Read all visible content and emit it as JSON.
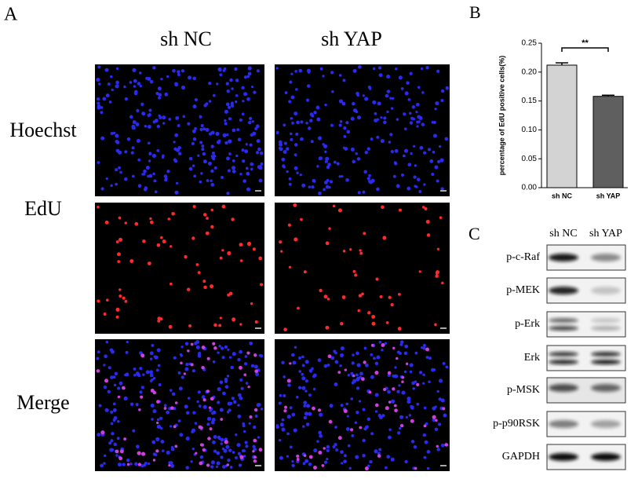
{
  "panel_a": {
    "label": "A",
    "columns": [
      "sh NC",
      "sh YAP"
    ],
    "rows": [
      "Hoechst",
      "EdU",
      "Merge"
    ]
  },
  "chart_data": {
    "type": "bar",
    "panel_label": "B",
    "ylabel": "percentage of EdU positive cells(%)",
    "categories": [
      "sh NC",
      "sh YAP"
    ],
    "values": [
      0.212,
      0.158
    ],
    "errors": [
      0.004,
      0.002
    ],
    "colors": [
      "#d3d3d3",
      "#5f5f5f"
    ],
    "ylim": [
      0,
      0.25
    ],
    "yticks": [
      {
        "value": 0,
        "label": "0.00"
      },
      {
        "value": 0.05,
        "label": "0.05"
      },
      {
        "value": 0.1,
        "label": "0.10"
      },
      {
        "value": 0.15,
        "label": "0.15"
      },
      {
        "value": 0.2,
        "label": "0.20"
      },
      {
        "value": 0.25,
        "label": "0.25"
      }
    ],
    "annotations": [
      "**"
    ]
  },
  "panel_c": {
    "label": "C",
    "columns": [
      "sh NC",
      "sh YAP"
    ],
    "rows": [
      "p-c-Raf",
      "p-MEK",
      "p-Erk",
      "Erk",
      "p-MSK",
      "p-p90RSK",
      "GAPDH"
    ]
  }
}
